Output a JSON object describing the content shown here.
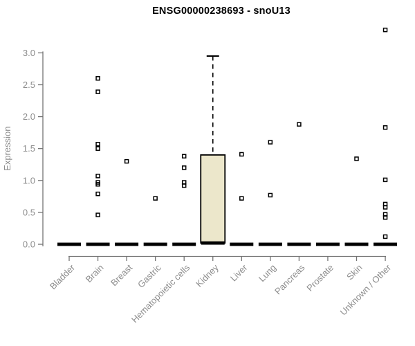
{
  "chart_data": {
    "type": "boxplot",
    "title": "ENSG00000238693 - snoU13",
    "ylabel": "Expression",
    "xlabel": "",
    "ylim": [
      0.0,
      3.0
    ],
    "yticks": [
      "0.0",
      "0.5",
      "1.0",
      "1.5",
      "2.0",
      "2.5",
      "3.0"
    ],
    "grid": false,
    "legend": "none",
    "marker_shape": "open-square",
    "colors": {
      "box_fill": "#ece7cb",
      "box_stroke": "#000000",
      "axis_line": "#737373",
      "tick_label": "#8c8c8c",
      "marker": "#000000",
      "zero_bar": "#000000",
      "title": "#000000"
    },
    "categories": [
      {
        "name": "Bladder",
        "median": 0.0,
        "outliers": []
      },
      {
        "name": "Brain",
        "median": 0.0,
        "outliers": [
          2.6,
          2.39,
          1.57,
          1.5,
          1.07,
          0.97,
          0.94,
          0.79,
          0.46
        ]
      },
      {
        "name": "Breast",
        "median": 0.0,
        "outliers": [
          1.3
        ]
      },
      {
        "name": "Gastric",
        "median": 0.0,
        "outliers": [
          0.72
        ]
      },
      {
        "name": "Hematopoietic cells",
        "median": 0.0,
        "outliers": [
          1.38,
          1.2,
          0.97,
          0.92
        ]
      },
      {
        "name": "Kidney",
        "median": 0.02,
        "box": {
          "q1": 0.02,
          "q3": 1.4,
          "whisker_high": 2.95
        },
        "outliers": []
      },
      {
        "name": "Liver",
        "median": 0.0,
        "outliers": [
          1.41,
          0.72
        ]
      },
      {
        "name": "Lung",
        "median": 0.0,
        "outliers": [
          1.6,
          0.77
        ]
      },
      {
        "name": "Pancreas",
        "median": 0.0,
        "outliers": [
          1.88
        ]
      },
      {
        "name": "Prostate",
        "median": 0.0,
        "outliers": []
      },
      {
        "name": "Skin",
        "median": 0.0,
        "outliers": [
          1.34
        ]
      },
      {
        "name": "Unknown / Other",
        "median": 0.0,
        "outliers": [
          3.36,
          1.83,
          1.01,
          0.63,
          0.58,
          0.47,
          0.42,
          0.12
        ]
      }
    ]
  }
}
